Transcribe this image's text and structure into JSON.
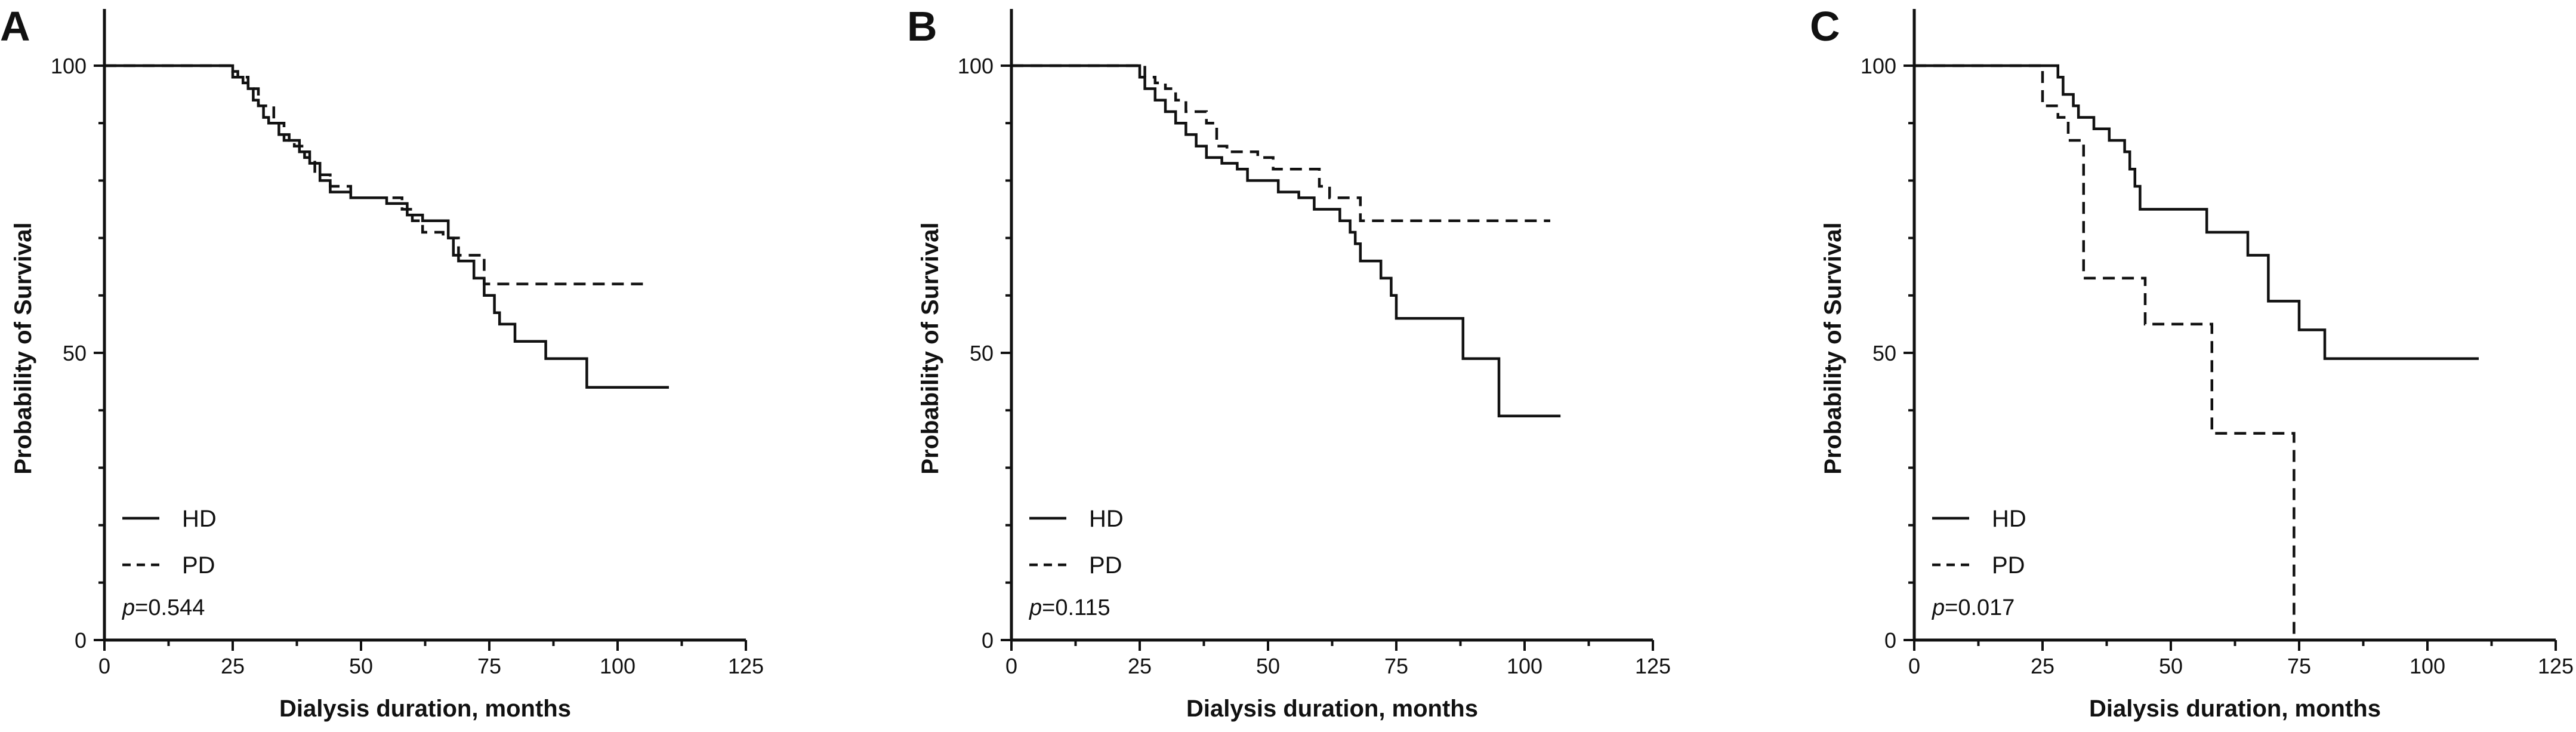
{
  "chart_data": [
    {
      "type": "line",
      "panel_label": "A",
      "xlabel": "Dialysis duration, months",
      "ylabel": "Probability of Survival",
      "xlim": [
        0,
        125
      ],
      "ylim": [
        0,
        110
      ],
      "x_ticks": [
        0,
        25,
        50,
        75,
        100,
        125
      ],
      "y_ticks": [
        0,
        50,
        100
      ],
      "legend_position": "bottom-left",
      "p_value": "=0.544",
      "series": [
        {
          "name": "HD",
          "line_style": "solid",
          "points": [
            [
              0,
              100
            ],
            [
              24,
              100
            ],
            [
              25,
              99
            ],
            [
              26,
              98
            ],
            [
              27,
              97
            ],
            [
              28,
              96
            ],
            [
              29,
              94
            ],
            [
              30,
              93
            ],
            [
              31,
              91
            ],
            [
              32,
              90
            ],
            [
              34,
              88
            ],
            [
              36,
              87
            ],
            [
              38,
              85
            ],
            [
              40,
              83
            ],
            [
              42,
              80
            ],
            [
              44,
              78
            ],
            [
              48,
              77
            ],
            [
              55,
              76
            ],
            [
              59,
              74
            ],
            [
              62,
              73
            ],
            [
              67,
              70
            ],
            [
              68,
              67
            ],
            [
              69,
              66
            ],
            [
              72,
              63
            ],
            [
              74,
              60
            ],
            [
              76,
              57
            ],
            [
              77,
              55
            ],
            [
              80,
              52
            ],
            [
              86,
              49
            ],
            [
              94,
              44
            ],
            [
              110,
              44
            ]
          ]
        },
        {
          "name": "PD",
          "line_style": "dashed",
          "points": [
            [
              0,
              100
            ],
            [
              24,
              100
            ],
            [
              25,
              98
            ],
            [
              28,
              96
            ],
            [
              30,
              93
            ],
            [
              33,
              90
            ],
            [
              35,
              87
            ],
            [
              37,
              86
            ],
            [
              39,
              84
            ],
            [
              41,
              81
            ],
            [
              44,
              79
            ],
            [
              48,
              77
            ],
            [
              58,
              75
            ],
            [
              60,
              73
            ],
            [
              62,
              71
            ],
            [
              66,
              70
            ],
            [
              69,
              67
            ],
            [
              74,
              62
            ],
            [
              105,
              62
            ]
          ]
        }
      ]
    },
    {
      "type": "line",
      "panel_label": "B",
      "xlabel": "Dialysis duration, months",
      "ylabel": "Probability of Survival",
      "xlim": [
        0,
        125
      ],
      "ylim": [
        0,
        110
      ],
      "x_ticks": [
        0,
        25,
        50,
        75,
        100,
        125
      ],
      "y_ticks": [
        0,
        50,
        100
      ],
      "legend_position": "bottom-left",
      "p_value": "=0.115",
      "series": [
        {
          "name": "HD",
          "line_style": "solid",
          "points": [
            [
              0,
              100
            ],
            [
              24,
              100
            ],
            [
              25,
              98
            ],
            [
              26,
              96
            ],
            [
              28,
              94
            ],
            [
              30,
              92
            ],
            [
              32,
              90
            ],
            [
              34,
              88
            ],
            [
              36,
              86
            ],
            [
              38,
              84
            ],
            [
              41,
              83
            ],
            [
              44,
              82
            ],
            [
              46,
              80
            ],
            [
              50,
              80
            ],
            [
              52,
              78
            ],
            [
              56,
              77
            ],
            [
              59,
              75
            ],
            [
              62,
              75
            ],
            [
              64,
              73
            ],
            [
              66,
              71
            ],
            [
              67,
              69
            ],
            [
              68,
              66
            ],
            [
              72,
              63
            ],
            [
              74,
              60
            ],
            [
              75,
              56
            ],
            [
              88,
              49
            ],
            [
              95,
              39
            ],
            [
              107,
              39
            ]
          ]
        },
        {
          "name": "PD",
          "line_style": "dashed",
          "points": [
            [
              0,
              100
            ],
            [
              25,
              100
            ],
            [
              26,
              98
            ],
            [
              28,
              97
            ],
            [
              30,
              96
            ],
            [
              32,
              94
            ],
            [
              34,
              92
            ],
            [
              38,
              90
            ],
            [
              40,
              86
            ],
            [
              42,
              85
            ],
            [
              48,
              84
            ],
            [
              51,
              82
            ],
            [
              58,
              82
            ],
            [
              60,
              79
            ],
            [
              62,
              77
            ],
            [
              67,
              77
            ],
            [
              68,
              73
            ],
            [
              105,
              73
            ]
          ]
        }
      ]
    },
    {
      "type": "line",
      "panel_label": "C",
      "xlabel": "Dialysis duration, months",
      "ylabel": "Probability of Survival",
      "xlim": [
        0,
        125
      ],
      "ylim": [
        0,
        110
      ],
      "x_ticks": [
        0,
        25,
        50,
        75,
        100,
        125
      ],
      "y_ticks": [
        0,
        50,
        100
      ],
      "legend_position": "bottom-left",
      "p_value": "=0.017",
      "series": [
        {
          "name": "HD",
          "line_style": "solid",
          "points": [
            [
              0,
              100
            ],
            [
              27,
              100
            ],
            [
              28,
              98
            ],
            [
              29,
              95
            ],
            [
              31,
              93
            ],
            [
              32,
              91
            ],
            [
              35,
              89
            ],
            [
              38,
              87
            ],
            [
              41,
              85
            ],
            [
              42,
              82
            ],
            [
              43,
              79
            ],
            [
              44,
              75
            ],
            [
              57,
              71
            ],
            [
              65,
              67
            ],
            [
              69,
              59
            ],
            [
              75,
              54
            ],
            [
              80,
              49
            ],
            [
              110,
              49
            ]
          ]
        },
        {
          "name": "PD",
          "line_style": "dashed",
          "points": [
            [
              0,
              100
            ],
            [
              24,
              100
            ],
            [
              25,
              93
            ],
            [
              28,
              91
            ],
            [
              30,
              87
            ],
            [
              33,
              63
            ],
            [
              41,
              63
            ],
            [
              45,
              55
            ],
            [
              57,
              55
            ],
            [
              58,
              36
            ],
            [
              74,
              36
            ],
            [
              74,
              0
            ]
          ]
        }
      ]
    }
  ]
}
